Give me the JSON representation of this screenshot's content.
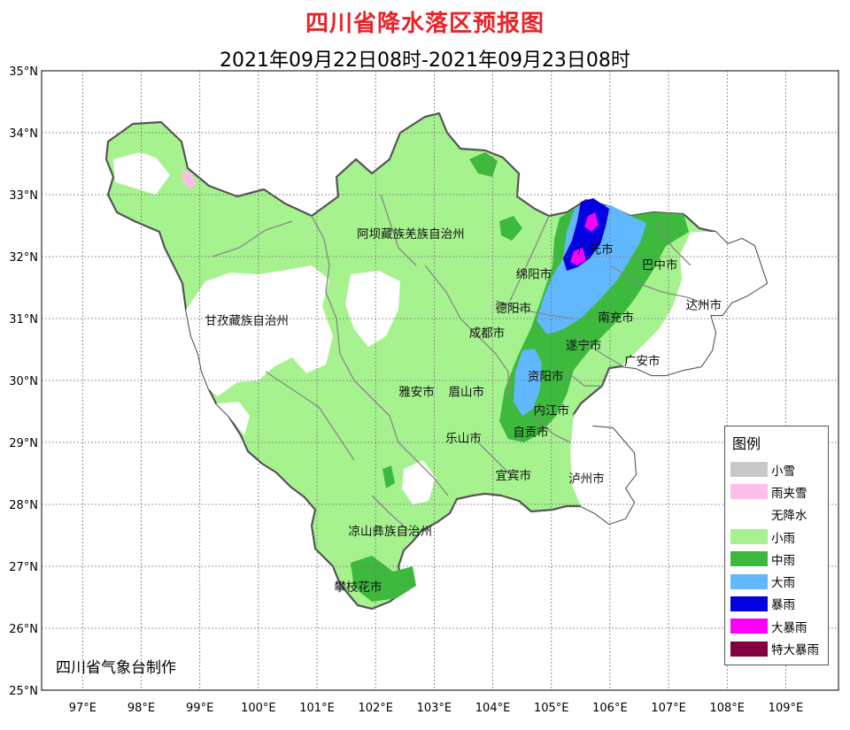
{
  "title": "四川省降水落区预报图",
  "subtitle": "2021年09月22日08时-2021年09月23日08时",
  "producer": "四川省气象台制作",
  "legend": {
    "title": "图例",
    "items": [
      {
        "label": "小雪",
        "color": "#c8c8c8"
      },
      {
        "label": "雨夹雪",
        "color": "#ffbfe8"
      },
      {
        "label": "无降水",
        "color": "#ffffff"
      },
      {
        "label": "小雨",
        "color": "#a6f28f"
      },
      {
        "label": "中雨",
        "color": "#3dba3d"
      },
      {
        "label": "大雨",
        "color": "#61b8ff"
      },
      {
        "label": "暴雨",
        "color": "#0000e1"
      },
      {
        "label": "大暴雨",
        "color": "#fa00fa"
      },
      {
        "label": "特大暴雨",
        "color": "#800040"
      }
    ]
  },
  "axes": {
    "lon_labels": [
      "97°E",
      "98°E",
      "99°E",
      "100°E",
      "101°E",
      "102°E",
      "103°E",
      "104°E",
      "105°E",
      "106°E",
      "107°E",
      "108°E",
      "109°E"
    ],
    "lat_labels": [
      "35°N",
      "34°N",
      "33°N",
      "32°N",
      "31°N",
      "30°N",
      "29°N",
      "28°N",
      "27°N",
      "26°N",
      "25°N"
    ],
    "lon_range": [
      96.3,
      109.9
    ],
    "lat_range": [
      25,
      35
    ],
    "grid": true
  },
  "place_labels": [
    {
      "text": "阿坝藏族羌族自治州",
      "lon": 102.6,
      "lat": 32.3
    },
    {
      "text": "甘孜藏族自治州",
      "lon": 99.8,
      "lat": 30.9
    },
    {
      "text": "绵阳市",
      "lon": 104.7,
      "lat": 31.65
    },
    {
      "text": "广元市",
      "lon": 105.75,
      "lat": 32.05
    },
    {
      "text": "巴中市",
      "lon": 106.85,
      "lat": 31.8
    },
    {
      "text": "达州市",
      "lon": 107.6,
      "lat": 31.15
    },
    {
      "text": "南充市",
      "lon": 106.1,
      "lat": 30.95
    },
    {
      "text": "德阳市",
      "lon": 104.35,
      "lat": 31.1
    },
    {
      "text": "成都市",
      "lon": 103.9,
      "lat": 30.7
    },
    {
      "text": "遂宁市",
      "lon": 105.55,
      "lat": 30.5
    },
    {
      "text": "广安市",
      "lon": 106.55,
      "lat": 30.25
    },
    {
      "text": "资阳市",
      "lon": 104.9,
      "lat": 30.0
    },
    {
      "text": "雅安市",
      "lon": 102.7,
      "lat": 29.75
    },
    {
      "text": "眉山市",
      "lon": 103.55,
      "lat": 29.75
    },
    {
      "text": "内江市",
      "lon": 105.0,
      "lat": 29.45
    },
    {
      "text": "乐山市",
      "lon": 103.5,
      "lat": 29.0
    },
    {
      "text": "自贡市",
      "lon": 104.65,
      "lat": 29.1
    },
    {
      "text": "宜宾市",
      "lon": 104.35,
      "lat": 28.4
    },
    {
      "text": "泸州市",
      "lon": 105.6,
      "lat": 28.35
    },
    {
      "text": "凉山彝族自治州",
      "lon": 102.25,
      "lat": 27.5
    },
    {
      "text": "攀枝花市",
      "lon": 101.7,
      "lat": 26.6
    }
  ]
}
